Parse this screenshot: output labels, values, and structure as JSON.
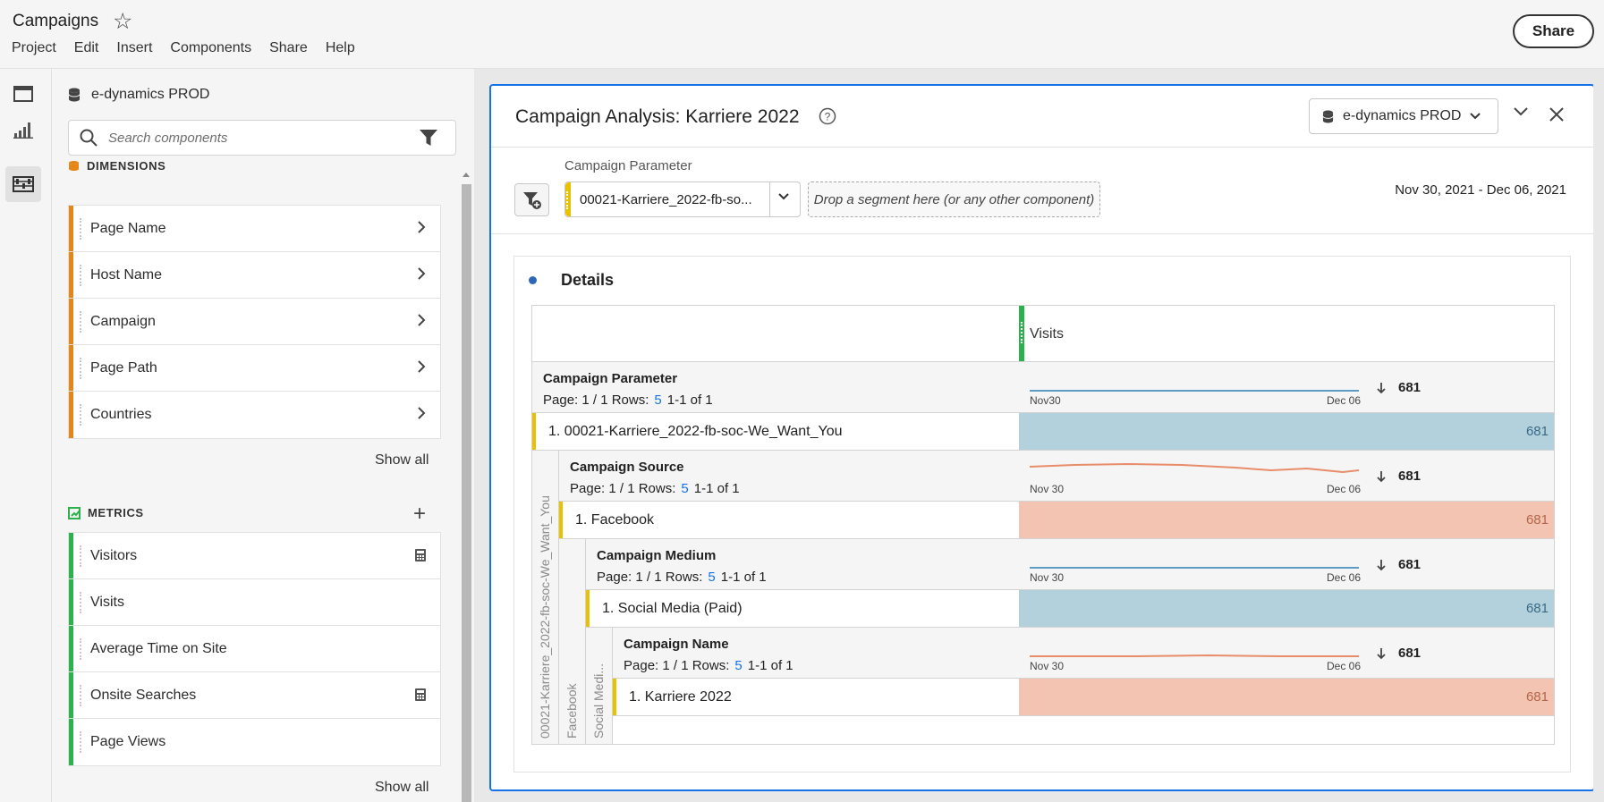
{
  "header": {
    "project_title": "Campaigns",
    "menu": [
      "Project",
      "Edit",
      "Insert",
      "Components",
      "Share",
      "Help"
    ],
    "share_label": "Share"
  },
  "rail": {
    "items": [
      "panels-icon",
      "visualizations-icon",
      "components-icon"
    ],
    "active": "components-icon"
  },
  "components_panel": {
    "report_suite": "e-dynamics PROD",
    "search_placeholder": "Search components",
    "dimensions": {
      "title": "DIMENSIONS",
      "items": [
        "Page Name",
        "Host Name",
        "Campaign",
        "Page Path",
        "Countries"
      ],
      "show_all": "Show all"
    },
    "metrics": {
      "title": "METRICS",
      "items": [
        {
          "label": "Visitors",
          "calculator": true
        },
        {
          "label": "Visits",
          "calculator": false
        },
        {
          "label": "Average Time on Site",
          "calculator": false
        },
        {
          "label": "Onsite Searches",
          "calculator": true
        },
        {
          "label": "Page Views",
          "calculator": false
        }
      ],
      "show_all": "Show all"
    }
  },
  "freeform": {
    "title": "Campaign Analysis: Karriere 2022",
    "report_suite": "e-dynamics PROD",
    "dropdown_label": "Campaign Parameter",
    "dropdown_value": "00021-Karriere_2022-fb-so...",
    "drop_zone": "Drop a segment here (or any other component)",
    "date_range": "Nov 30, 2021 - Dec 06, 2021",
    "panel_title": "Details",
    "table": {
      "metric": "Visits",
      "levels": [
        {
          "dimension": "Campaign Parameter",
          "page": "Page: 1 / 1 Rows:",
          "rows": "5",
          "range": "1-1 of 1",
          "spark_start": "Nov30",
          "spark_end": "Dec 06",
          "total": "681",
          "item": "1. 00021-Karriere_2022-fb-soc-We_Want_You",
          "value": "681",
          "color": "#b2d1dd"
        },
        {
          "dimension": "Campaign Source",
          "page": "Page: 1 / 1 Rows:",
          "rows": "5",
          "range": "1-1 of 1",
          "spark_start": "Nov 30",
          "spark_end": "Dec 06",
          "total": "681",
          "item": "1. Facebook",
          "value": "681",
          "color": "#f2c4b1"
        },
        {
          "dimension": "Campaign Medium",
          "page": "Page: 1 / 1 Rows:",
          "rows": "5",
          "range": "1-1 of 1",
          "spark_start": "Nov 30",
          "spark_end": "Dec 06",
          "total": "681",
          "item": "1. Social Media (Paid)",
          "value": "681",
          "color": "#b2d1dd"
        },
        {
          "dimension": "Campaign Name",
          "page": "Page: 1 / 1 Rows:",
          "rows": "5",
          "range": "1-1 of 1",
          "spark_start": "Nov 30",
          "spark_end": "Dec 06",
          "total": "681",
          "item": "1. Karriere 2022",
          "value": "681",
          "color": "#f2c4b1"
        }
      ],
      "vertical_labels": [
        "00021-Karriere_2022-fb-soc-We_Want_You",
        "Facebook",
        "Social Medi..."
      ]
    }
  },
  "colors": {
    "accent": "#1473e6",
    "dimension_bar": "#e68619",
    "metric_bar": "#2bb24c",
    "item_bar": "#e8c200"
  }
}
